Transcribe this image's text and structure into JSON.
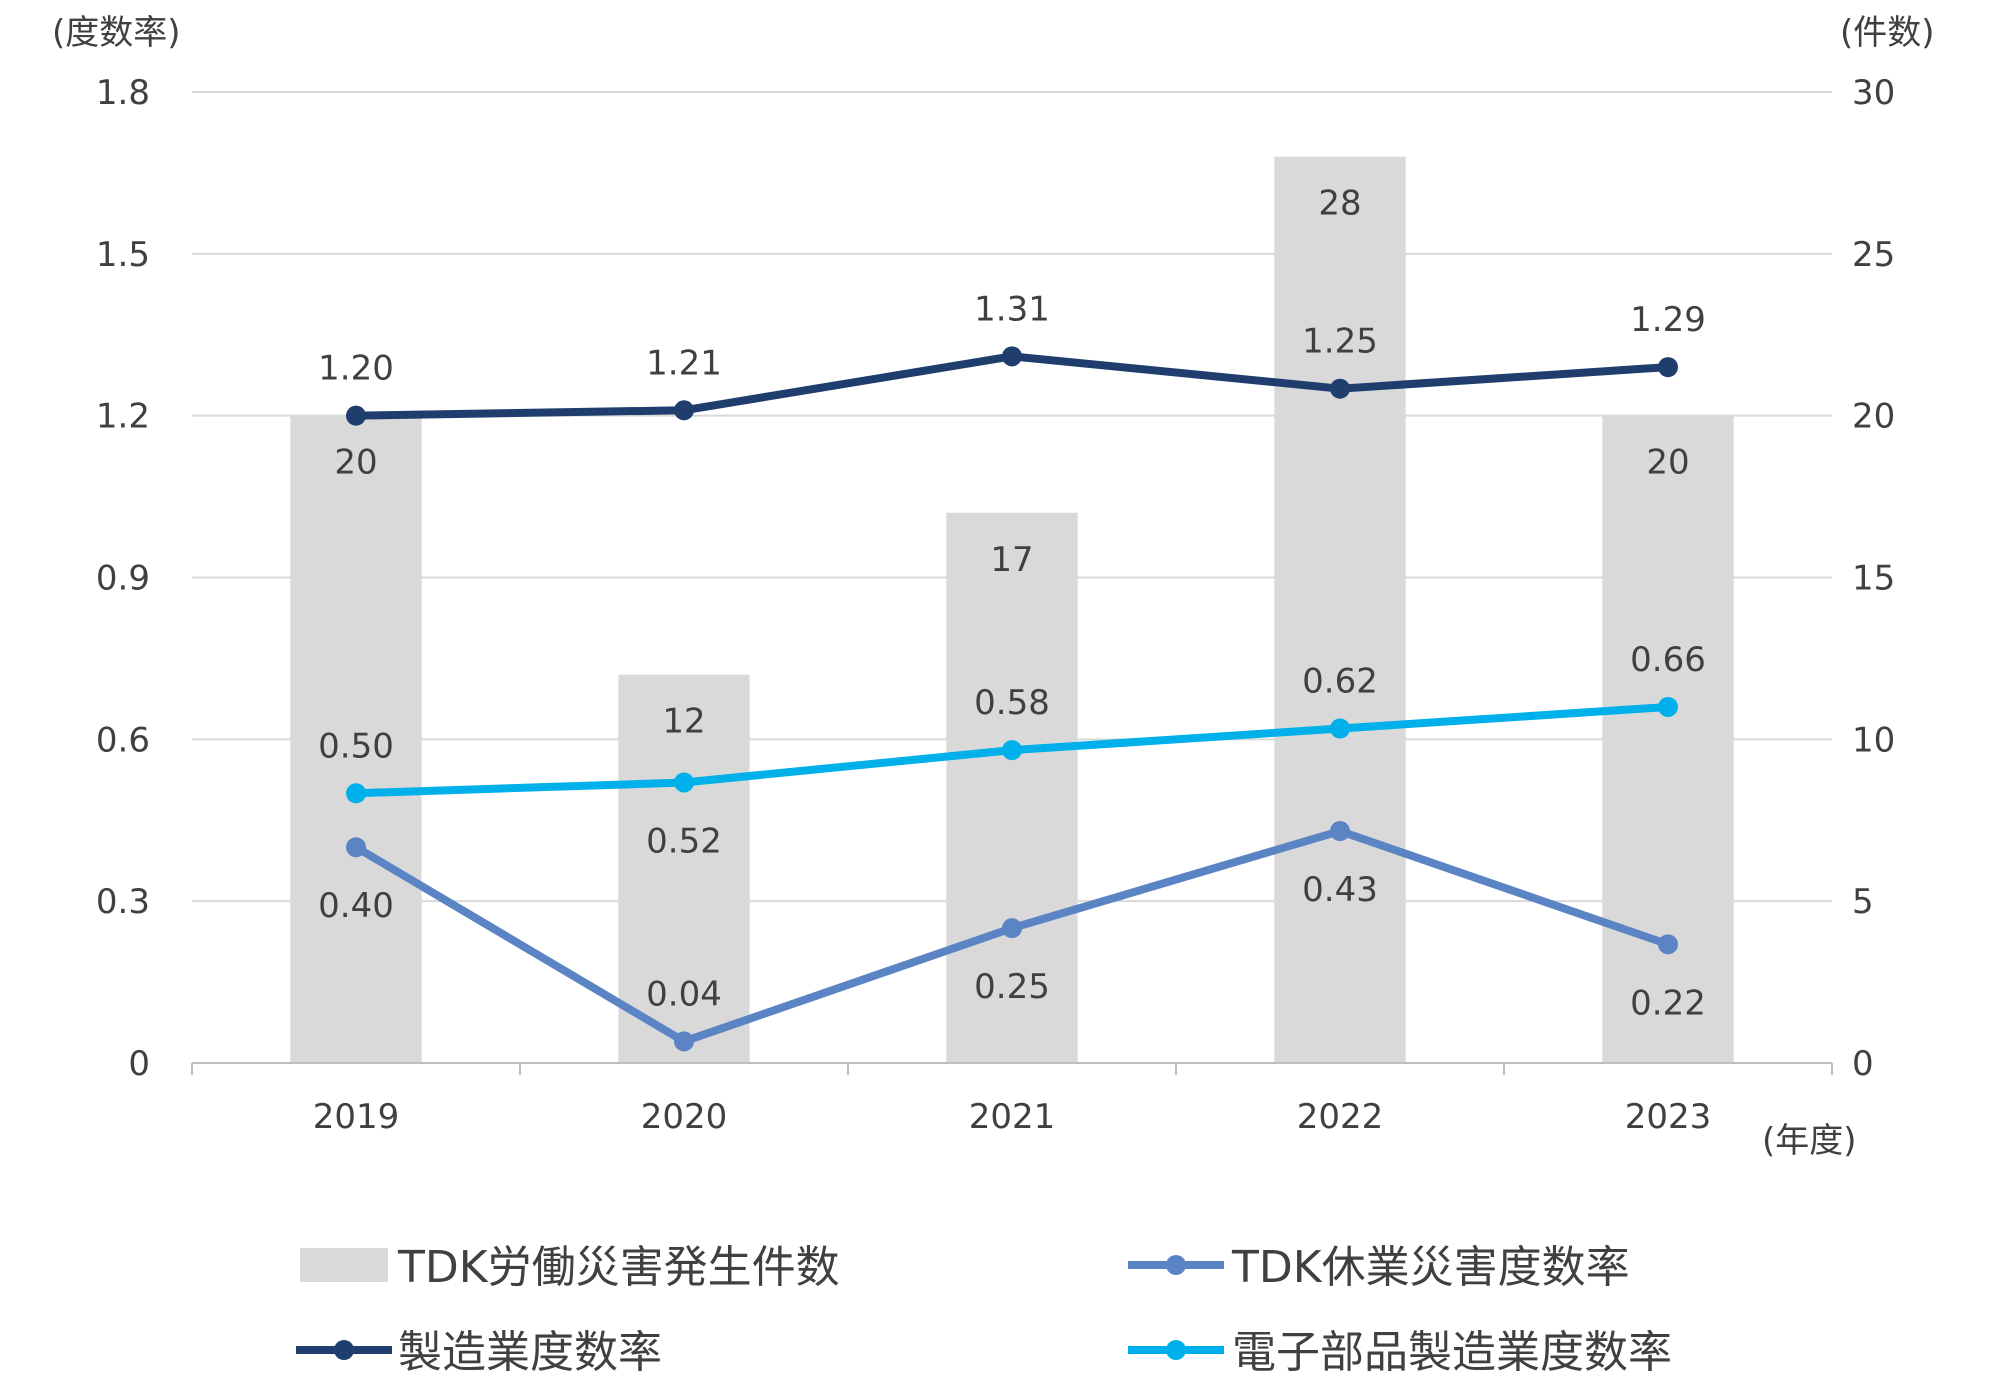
{
  "chart_data": {
    "type": "bar+line",
    "categories": [
      "2019",
      "2020",
      "2021",
      "2022",
      "2023"
    ],
    "left_axis": {
      "unit_label": "(度数率)",
      "ticks": [
        "0",
        "0.3",
        "0.6",
        "0.9",
        "1.2",
        "1.5",
        "1.8"
      ],
      "range": [
        0,
        1.8
      ]
    },
    "right_axis": {
      "unit_label": "(件数)",
      "ticks": [
        "0",
        "5",
        "10",
        "15",
        "20",
        "25",
        "30"
      ],
      "range": [
        0,
        30
      ]
    },
    "x_unit_label": "(年度)",
    "bars": {
      "name": "TDK労働災害発生件数",
      "axis": "right",
      "color": "#d9d9d9",
      "values": [
        20,
        12,
        17,
        28,
        20
      ],
      "labels": [
        "20",
        "12",
        "17",
        "28",
        "20"
      ]
    },
    "series": [
      {
        "name": "TDK休業災害度数率",
        "axis": "left",
        "color": "#5b84c4",
        "values": [
          0.4,
          0.04,
          0.25,
          0.43,
          0.22
        ],
        "labels": [
          "0.40",
          "0.04",
          "0.25",
          "0.43",
          "0.22"
        ]
      },
      {
        "name": "製造業度数率",
        "axis": "left",
        "color": "#1f3e6e",
        "values": [
          1.2,
          1.21,
          1.31,
          1.25,
          1.29
        ],
        "labels": [
          "1.20",
          "1.21",
          "1.31",
          "1.25",
          "1.29"
        ]
      },
      {
        "name": "電子部品製造業度数率",
        "axis": "left",
        "color": "#00b0ea",
        "values": [
          0.5,
          0.52,
          0.58,
          0.62,
          0.66
        ],
        "labels": [
          "0.50",
          "0.52",
          "0.58",
          "0.62",
          "0.66"
        ]
      }
    ],
    "grid": true,
    "legend_position": "bottom"
  }
}
